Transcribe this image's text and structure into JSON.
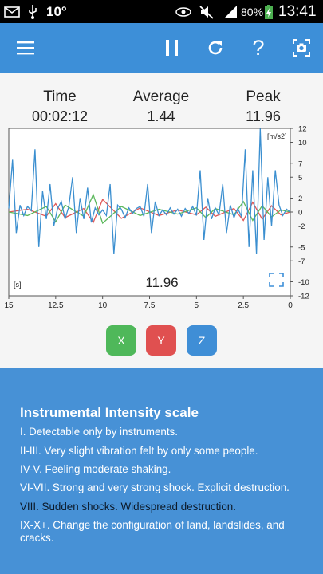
{
  "status_bar": {
    "temperature": "10°",
    "battery": "80%",
    "time": "13:41"
  },
  "toolbar": {
    "menu_icon": "hamburger-menu-icon",
    "pause_icon": "pause-icon",
    "refresh_icon": "refresh-icon",
    "help_label": "?",
    "camera_icon": "camera-icon"
  },
  "stats": {
    "time_label": "Time",
    "time_value": "00:02:12",
    "average_label": "Average",
    "average_value": "1.44",
    "peak_label": "Peak",
    "peak_value": "11.96"
  },
  "chart_data": {
    "type": "line",
    "unit_label": "[m/s2]",
    "x_unit_label": "[s]",
    "center_readout": "11.96",
    "xlim": [
      15,
      0
    ],
    "ylim": [
      -12,
      12
    ],
    "x_ticks": [
      "15",
      "12.5",
      "10",
      "7.5",
      "5",
      "2.5",
      "0"
    ],
    "y_ticks": [
      "12",
      "10",
      "7",
      "5",
      "2",
      "0",
      "-2",
      "-5",
      "-7",
      "-10",
      "-12"
    ],
    "series": [
      {
        "color": "#3b8fd0",
        "x": [
          15,
          14.8,
          14.6,
          14.4,
          14.2,
          14.0,
          13.8,
          13.6,
          13.4,
          13.2,
          13.0,
          12.8,
          12.6,
          12.4,
          12.2,
          12.0,
          11.8,
          11.6,
          11.4,
          11.2,
          11.0,
          10.8,
          10.6,
          10.4,
          10.2,
          10.0,
          9.8,
          9.6,
          9.4,
          9.2,
          9.0,
          8.8,
          8.6,
          8.4,
          8.2,
          8.0,
          7.8,
          7.6,
          7.4,
          7.2,
          7.0,
          6.8,
          6.6,
          6.4,
          6.2,
          6.0,
          5.8,
          5.6,
          5.4,
          5.2,
          5.0,
          4.8,
          4.6,
          4.4,
          4.2,
          4.0,
          3.8,
          3.6,
          3.4,
          3.2,
          3.0,
          2.8,
          2.6,
          2.4,
          2.2,
          2.0,
          1.8,
          1.6,
          1.4,
          1.2,
          1.0,
          0.8,
          0.6,
          0.4,
          0.2,
          0.0
        ],
        "y": [
          0.5,
          7.5,
          -3,
          1,
          -0.5,
          0.8,
          0.2,
          9,
          -5,
          3,
          -1,
          4,
          -2,
          0.5,
          1.5,
          -1,
          0.8,
          5,
          -3,
          2,
          -1,
          3.5,
          -1.5,
          0.6,
          -0.4,
          0.3,
          -0.5,
          4,
          -6,
          1,
          0.4,
          -0.8,
          0.6,
          -0.2,
          0.5,
          0.8,
          -0.6,
          4,
          -3,
          1.5,
          -0.5,
          0.3,
          -0.4,
          0.6,
          -0.3,
          0.4,
          -0.6,
          0.5,
          -0.2,
          0.8,
          -0.5,
          6,
          -4,
          2,
          -1,
          0.6,
          -0.4,
          4,
          -3,
          1,
          -0.8,
          0.5,
          -0.6,
          9,
          -5,
          6,
          -6,
          11.96,
          -4,
          5,
          -2,
          6,
          1,
          -0.5,
          0.4,
          0
        ]
      },
      {
        "color": "#e05757",
        "x": [
          15,
          14,
          13,
          12.5,
          12,
          11,
          10.5,
          10,
          9,
          8,
          7,
          6,
          5,
          4.5,
          4,
          3,
          2.5,
          2,
          1.5,
          1,
          0.5,
          0
        ],
        "y": [
          0,
          0.4,
          -0.6,
          1.2,
          -0.8,
          0.5,
          -1.5,
          1.8,
          -0.9,
          0.6,
          -0.5,
          0.3,
          -0.4,
          0.7,
          -0.6,
          0.5,
          -1.2,
          1.4,
          -1,
          0.9,
          -0.4,
          0
        ]
      },
      {
        "color": "#5cb85c",
        "x": [
          15,
          14,
          13,
          12.5,
          12,
          11,
          10.5,
          10,
          9,
          8,
          7,
          6,
          5,
          4.5,
          4,
          3,
          2.5,
          2,
          1.5,
          1,
          0.5,
          0
        ],
        "y": [
          0,
          -0.5,
          0.8,
          -1.4,
          1,
          -0.6,
          2.5,
          -1.6,
          0.8,
          -0.5,
          0.4,
          -0.3,
          0.6,
          -0.8,
          0.5,
          -0.4,
          1.5,
          -1.2,
          0.9,
          -0.7,
          0.3,
          0
        ]
      }
    ]
  },
  "axis_buttons": [
    {
      "label": "X",
      "color": "#4fb85a"
    },
    {
      "label": "Y",
      "color": "#e05050"
    },
    {
      "label": "Z",
      "color": "#3f8ed6"
    }
  ],
  "intensity": {
    "title": "Instrumental Intensity scale",
    "lines": [
      "I. Detectable only by instruments.",
      "II-III. Very slight vibration felt by only some people.",
      "IV-V. Feeling moderate shaking.",
      "VI-VII. Strong and very strong shock. Explicit destruction.",
      "VIII. Sudden shocks. Widespread destruction.",
      "IX-X+. Change the configuration of land, landslides, and cracks."
    ]
  }
}
